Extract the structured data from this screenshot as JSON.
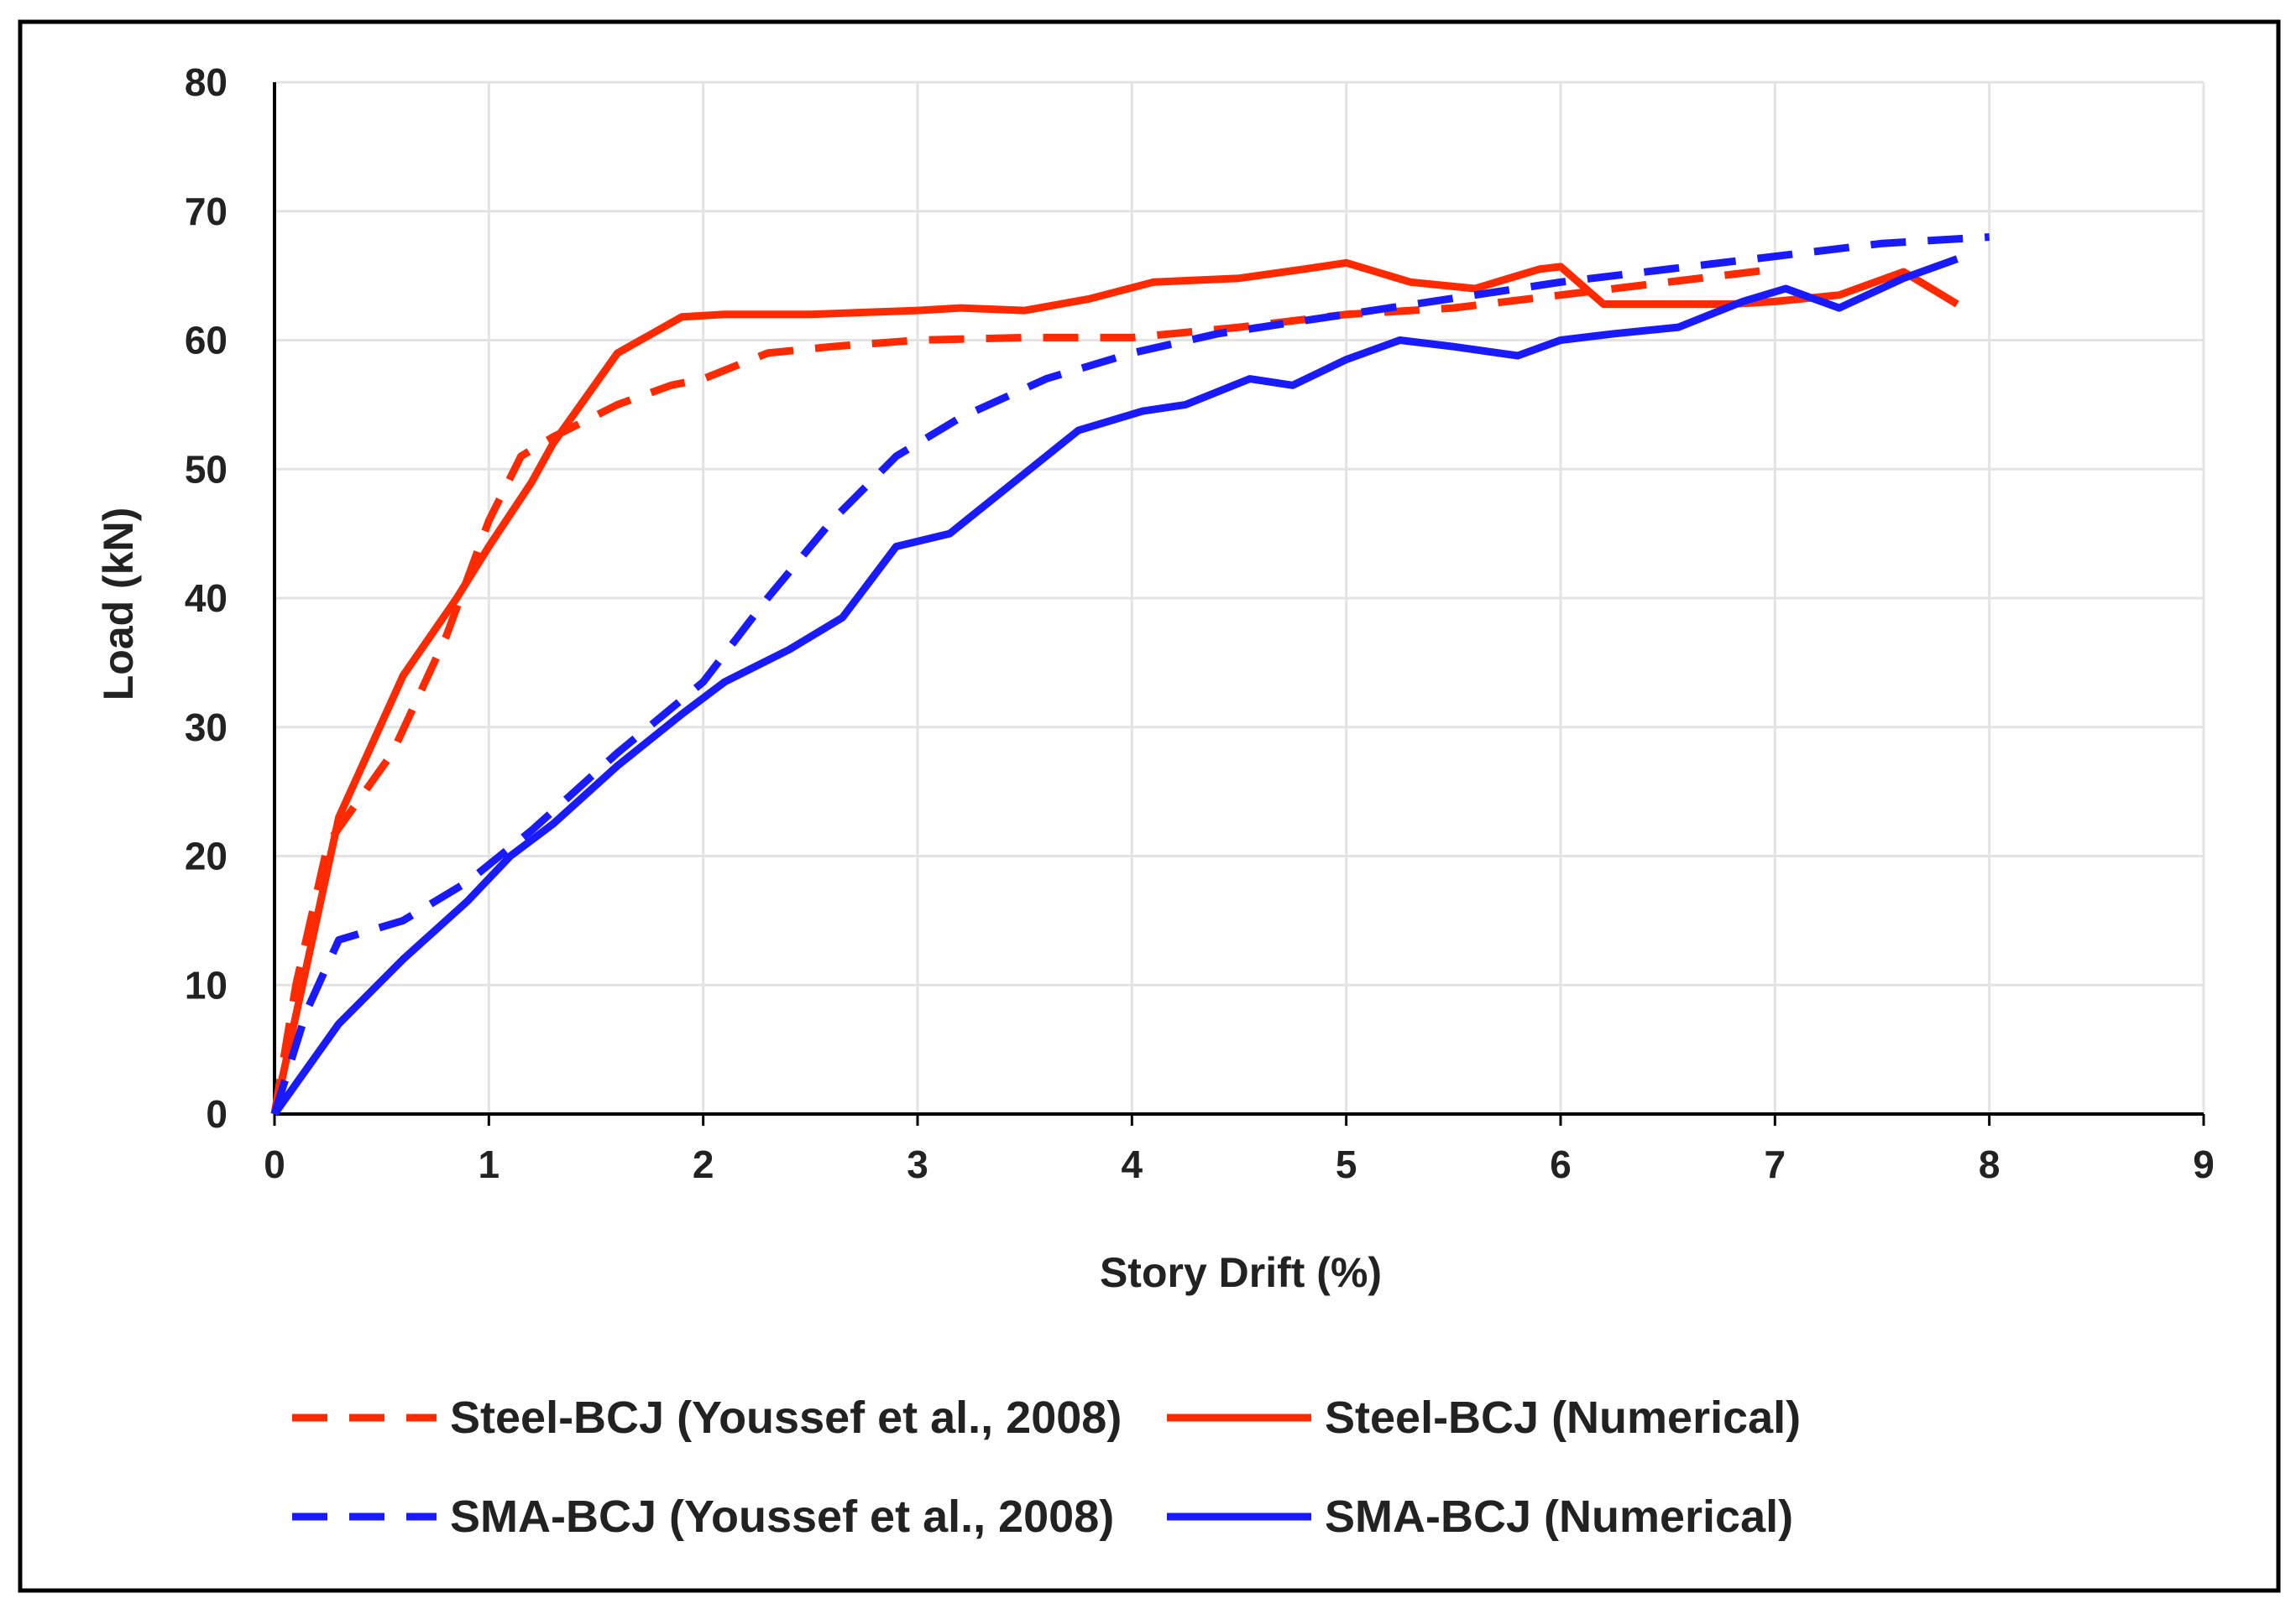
{
  "chart_data": {
    "type": "line",
    "title": "",
    "xlabel": "Story Drift (%)",
    "ylabel": "Load (kN)",
    "xlim": [
      0,
      9
    ],
    "ylim": [
      0,
      80
    ],
    "xticks": [
      0,
      1,
      2,
      3,
      4,
      5,
      6,
      7,
      8,
      9
    ],
    "yticks": [
      0,
      10,
      20,
      30,
      40,
      50,
      60,
      70,
      80
    ],
    "grid": true,
    "legend_position": "bottom",
    "series": [
      {
        "name": "Steel-BCJ (Youssef et al., 2008)",
        "color": "#ff2a00",
        "dash": "dashed",
        "x": [
          0,
          0.1,
          0.25,
          0.55,
          0.8,
          1.0,
          1.15,
          1.3,
          1.6,
          1.85,
          2.0,
          2.3,
          2.6,
          3.0,
          3.5,
          4.0,
          4.5,
          5.0,
          5.5,
          6.0,
          6.5,
          7.0
        ],
        "y": [
          0,
          10,
          21,
          28,
          37,
          46,
          51,
          52.5,
          55,
          56.5,
          57,
          59,
          59.5,
          60,
          60.2,
          60.2,
          61,
          62,
          62.5,
          63.5,
          64.5,
          65.5
        ]
      },
      {
        "name": "Steel-BCJ (Numerical)",
        "color": "#ff2a00",
        "dash": "solid",
        "x": [
          0,
          0.3,
          0.6,
          0.85,
          1.0,
          1.2,
          1.3,
          1.6,
          1.9,
          2.1,
          2.5,
          3.0,
          3.2,
          3.5,
          3.8,
          4.1,
          4.5,
          4.8,
          5.0,
          5.3,
          5.6,
          5.9,
          6.0,
          6.2,
          6.5,
          6.8,
          7.0,
          7.3,
          7.6,
          7.85
        ],
        "y": [
          0,
          23,
          34,
          40,
          44,
          49,
          52,
          59,
          61.8,
          62,
          62,
          62.3,
          62.5,
          62.3,
          63.2,
          64.5,
          64.8,
          65.5,
          66,
          64.5,
          64,
          65.5,
          65.7,
          62.8,
          62.8,
          62.8,
          63,
          63.5,
          65.3,
          62.8
        ]
      },
      {
        "name": "SMA-BCJ (Youssef et al., 2008)",
        "color": "#1a1aff",
        "dash": "dashed",
        "x": [
          0,
          0.15,
          0.3,
          0.6,
          0.9,
          1.2,
          1.6,
          2.0,
          2.3,
          2.6,
          2.9,
          3.2,
          3.6,
          4.0,
          4.4,
          4.8,
          5.2,
          5.6,
          6.0,
          6.5,
          7.0,
          7.5,
          8.0
        ],
        "y": [
          0,
          8,
          13.5,
          15,
          18,
          22,
          28,
          33.5,
          40,
          46,
          51,
          54,
          57,
          59,
          60.5,
          61.5,
          62.5,
          63.5,
          64.5,
          65.5,
          66.5,
          67.5,
          68
        ]
      },
      {
        "name": "SMA-BCJ (Numerical)",
        "color": "#1a1aff",
        "dash": "solid",
        "x": [
          0,
          0.3,
          0.6,
          0.9,
          1.1,
          1.3,
          1.6,
          1.9,
          2.1,
          2.4,
          2.65,
          2.9,
          3.15,
          3.45,
          3.75,
          4.05,
          4.25,
          4.55,
          4.75,
          5.0,
          5.25,
          5.5,
          5.8,
          6.0,
          6.25,
          6.55,
          6.85,
          7.05,
          7.3,
          7.6,
          7.85
        ],
        "y": [
          0,
          7,
          12,
          16.5,
          20,
          22.5,
          27,
          31,
          33.5,
          36,
          38.5,
          44,
          45,
          49,
          53,
          54.5,
          55,
          57,
          56.5,
          58.5,
          60,
          59.5,
          58.8,
          60,
          60.5,
          61,
          63,
          64,
          62.5,
          64.8,
          66.3
        ]
      }
    ]
  }
}
